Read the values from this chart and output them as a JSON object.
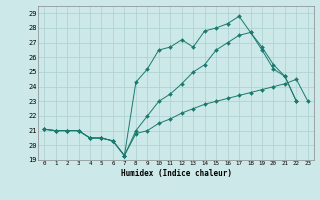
{
  "xlabel": "Humidex (Indice chaleur)",
  "bg_color": "#cce8e8",
  "grid_color": "#aacfcf",
  "line_color": "#1a7a6e",
  "xlim": [
    -0.5,
    23.5
  ],
  "ylim": [
    19,
    29.5
  ],
  "xticks": [
    0,
    1,
    2,
    3,
    4,
    5,
    6,
    7,
    8,
    9,
    10,
    11,
    12,
    13,
    14,
    15,
    16,
    17,
    18,
    19,
    20,
    21,
    22,
    23
  ],
  "yticks": [
    19,
    20,
    21,
    22,
    23,
    24,
    25,
    26,
    27,
    28,
    29
  ],
  "line1_x": [
    0,
    1,
    2,
    3,
    4,
    5,
    6,
    7,
    8,
    9,
    10,
    11,
    12,
    13,
    14,
    15,
    16,
    17,
    18,
    19,
    20,
    21,
    22,
    23
  ],
  "line1_y": [
    21.1,
    21.0,
    21.0,
    21.0,
    20.5,
    20.5,
    20.3,
    19.3,
    20.8,
    21.0,
    21.5,
    21.8,
    22.2,
    22.5,
    22.8,
    23.0,
    23.2,
    23.4,
    23.6,
    23.8,
    24.0,
    24.2,
    24.5,
    23.0
  ],
  "line2_x": [
    0,
    1,
    2,
    3,
    4,
    5,
    6,
    7,
    8,
    9,
    10,
    11,
    12,
    13,
    14,
    15,
    16,
    17,
    18,
    19,
    20,
    21,
    22
  ],
  "line2_y": [
    21.1,
    21.0,
    21.0,
    21.0,
    20.5,
    20.5,
    20.3,
    19.3,
    24.3,
    25.2,
    26.5,
    26.7,
    27.2,
    26.7,
    27.8,
    28.0,
    28.3,
    28.8,
    27.7,
    26.5,
    25.2,
    24.7,
    23.0
  ],
  "line3_x": [
    0,
    1,
    2,
    3,
    4,
    5,
    6,
    7,
    8,
    9,
    10,
    11,
    12,
    13,
    14,
    15,
    16,
    17,
    18,
    19,
    20,
    21,
    22
  ],
  "line3_y": [
    21.1,
    21.0,
    21.0,
    21.0,
    20.5,
    20.5,
    20.3,
    19.3,
    21.0,
    22.0,
    23.0,
    23.5,
    24.2,
    25.0,
    25.5,
    26.5,
    27.0,
    27.5,
    27.7,
    26.7,
    25.5,
    24.7,
    23.0
  ]
}
